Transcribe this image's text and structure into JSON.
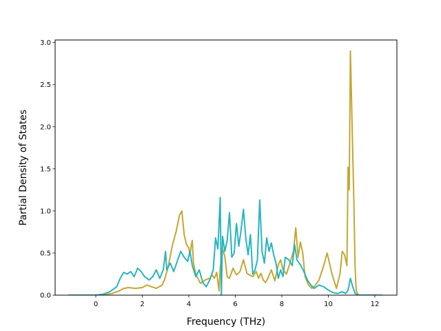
{
  "chart_data": {
    "type": "line",
    "title": "",
    "xlabel": "Frequency (THz)",
    "ylabel": "Partial Density of States",
    "xlim": [
      -1.75,
      12.95
    ],
    "ylim": [
      0,
      3.03
    ],
    "xticks": [
      0,
      2,
      4,
      6,
      8,
      10,
      12
    ],
    "xtick_labels": [
      "0",
      "2",
      "4",
      "6",
      "8",
      "10",
      "12"
    ],
    "yticks": [
      0.0,
      0.5,
      1.0,
      1.5,
      2.0,
      2.5,
      3.0
    ],
    "ytick_labels": [
      "0.0",
      "0.5",
      "1.0",
      "1.5",
      "2.0",
      "2.5",
      "3.0"
    ],
    "grid": false,
    "legend": "none",
    "series": [
      {
        "color": "#c4a630",
        "x": [
          -1.15,
          0.0,
          0.3,
          0.7,
          1.0,
          1.2,
          1.4,
          1.7,
          2.0,
          2.2,
          2.4,
          2.6,
          2.85,
          2.95,
          3.1,
          3.3,
          3.45,
          3.6,
          3.7,
          3.8,
          3.9,
          4.0,
          4.05,
          4.1,
          4.15,
          4.2,
          4.3,
          4.5,
          4.7,
          4.9,
          5.0,
          5.1,
          5.2,
          5.3,
          5.35,
          5.45,
          5.55,
          5.65,
          5.75,
          5.9,
          6.05,
          6.2,
          6.35,
          6.5,
          6.6,
          6.75,
          6.9,
          7.0,
          7.1,
          7.2,
          7.3,
          7.4,
          7.55,
          7.7,
          7.85,
          7.95,
          8.05,
          8.2,
          8.35,
          8.5,
          8.6,
          8.7,
          8.8,
          8.9,
          9.0,
          9.15,
          9.3,
          9.45,
          9.6,
          9.8,
          9.95,
          10.15,
          10.35,
          10.5,
          10.6,
          10.7,
          10.8,
          10.85,
          10.9,
          10.95,
          11.0,
          11.1,
          11.15,
          11.2,
          11.3,
          12.3
        ],
        "values": [
          0.0,
          0.0,
          0.0,
          0.02,
          0.05,
          0.08,
          0.09,
          0.08,
          0.09,
          0.12,
          0.1,
          0.08,
          0.12,
          0.18,
          0.32,
          0.6,
          0.75,
          0.95,
          1.0,
          0.72,
          0.6,
          0.56,
          0.48,
          0.58,
          0.65,
          0.38,
          0.25,
          0.14,
          0.18,
          0.2,
          0.24,
          0.2,
          0.27,
          0.05,
          0.32,
          0.55,
          0.46,
          0.22,
          0.2,
          0.32,
          0.24,
          0.28,
          0.42,
          0.26,
          0.24,
          0.22,
          0.28,
          0.2,
          0.26,
          0.18,
          0.15,
          0.2,
          0.3,
          0.17,
          0.36,
          0.42,
          0.3,
          0.25,
          0.38,
          0.52,
          0.8,
          0.45,
          0.63,
          0.5,
          0.22,
          0.12,
          0.08,
          0.12,
          0.18,
          0.35,
          0.5,
          0.26,
          0.08,
          0.25,
          0.52,
          0.48,
          0.35,
          1.52,
          1.25,
          2.9,
          2.3,
          1.1,
          0.35,
          0.05,
          0.0,
          0.0
        ]
      },
      {
        "color": "#27b4bf",
        "x": [
          -1.15,
          0.0,
          0.3,
          0.6,
          0.9,
          1.05,
          1.2,
          1.35,
          1.5,
          1.65,
          1.8,
          1.95,
          2.1,
          2.3,
          2.45,
          2.6,
          2.75,
          2.9,
          3.0,
          3.05,
          3.2,
          3.35,
          3.5,
          3.65,
          3.8,
          3.95,
          4.05,
          4.15,
          4.3,
          4.45,
          4.6,
          4.75,
          4.9,
          5.05,
          5.15,
          5.25,
          5.35,
          5.4,
          5.45,
          5.55,
          5.65,
          5.75,
          5.85,
          5.95,
          6.05,
          6.15,
          6.25,
          6.35,
          6.45,
          6.55,
          6.65,
          6.75,
          6.85,
          6.95,
          7.05,
          7.15,
          7.25,
          7.35,
          7.45,
          7.55,
          7.65,
          7.75,
          7.85,
          7.95,
          8.05,
          8.15,
          8.3,
          8.45,
          8.55,
          8.65,
          8.8,
          8.95,
          9.1,
          9.25,
          9.4,
          9.6,
          9.8,
          10.0,
          10.2,
          10.4,
          10.6,
          10.75,
          10.85,
          10.95,
          11.05,
          11.15,
          11.3,
          12.3
        ],
        "values": [
          0.0,
          0.0,
          0.01,
          0.04,
          0.1,
          0.2,
          0.27,
          0.25,
          0.28,
          0.22,
          0.32,
          0.28,
          0.22,
          0.18,
          0.22,
          0.3,
          0.2,
          0.3,
          0.52,
          0.3,
          0.38,
          0.28,
          0.4,
          0.52,
          0.45,
          0.4,
          0.52,
          0.35,
          0.22,
          0.3,
          0.15,
          0.1,
          0.18,
          0.3,
          0.68,
          0.55,
          1.16,
          0.0,
          0.7,
          0.52,
          0.65,
          0.98,
          0.45,
          0.5,
          0.85,
          0.58,
          0.78,
          1.02,
          0.68,
          0.48,
          0.72,
          0.25,
          0.3,
          0.42,
          1.13,
          0.52,
          0.38,
          0.68,
          0.52,
          0.62,
          0.48,
          0.38,
          0.2,
          0.3,
          0.22,
          0.45,
          0.42,
          0.35,
          0.6,
          0.42,
          0.36,
          0.28,
          0.18,
          0.12,
          0.08,
          0.12,
          0.1,
          0.06,
          0.03,
          0.02,
          0.04,
          0.02,
          0.06,
          0.2,
          0.1,
          0.02,
          0.0,
          0.0
        ]
      }
    ]
  }
}
